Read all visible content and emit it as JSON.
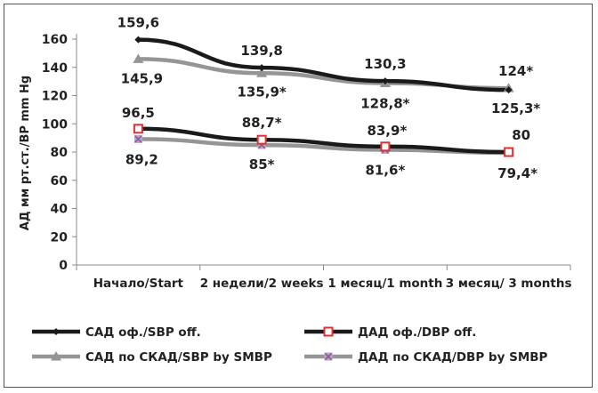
{
  "chart_data": {
    "type": "line",
    "ylabel": "АД мм рт.ст./BP mm Hg",
    "ylim": [
      0,
      160
    ],
    "yticks": [
      "0",
      "20",
      "40",
      "60",
      "80",
      "100",
      "120",
      "140",
      "160"
    ],
    "categories": [
      "Начало/Start",
      "2 недели/2 weeks",
      "1 месяц/1 month",
      "3 месяц/ 3 months"
    ],
    "grid": false,
    "legend_position": "bottom",
    "series": [
      {
        "name": "САД оф./SBP off.",
        "values": [
          159.6,
          139.8,
          130.3,
          124
        ],
        "labels": [
          "159,6",
          "139,8",
          "130,3",
          "124*"
        ],
        "color": "#1a1a1a",
        "marker": "diamond"
      },
      {
        "name": "САД по СКАД/SBP by SMBP",
        "values": [
          145.9,
          135.9,
          128.8,
          125.3
        ],
        "labels": [
          "145,9",
          "135,9*",
          "128,8*",
          "125,3*"
        ],
        "color": "#959595",
        "marker": "triangle"
      },
      {
        "name": "ДАД оф./DBP off.",
        "values": [
          96.5,
          88.7,
          83.9,
          80
        ],
        "labels": [
          "96,5",
          "88,7*",
          "83,9*",
          "80"
        ],
        "color": "#1a1a1a",
        "marker": "square",
        "marker_color": "#e03030"
      },
      {
        "name": "ДАД по СКАД/DBP by SMBP",
        "values": [
          89.2,
          85,
          81.6,
          79.4
        ],
        "labels": [
          "89,2",
          "85*",
          "81,6*",
          "79,4*"
        ],
        "color": "#959595",
        "marker": "x",
        "marker_color": "#8a5a9a"
      }
    ]
  }
}
